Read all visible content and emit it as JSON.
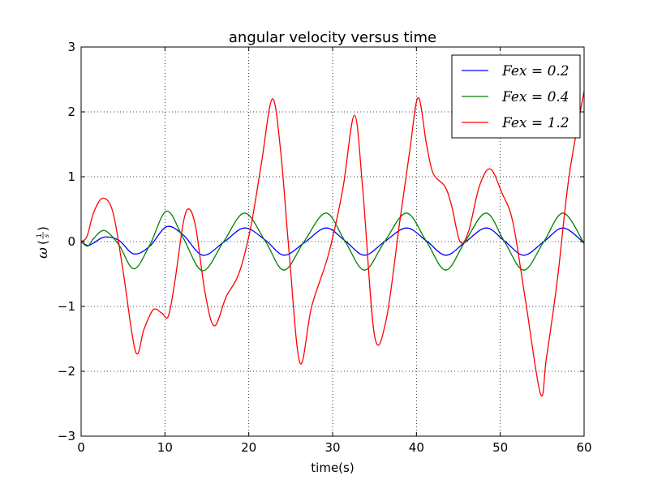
{
  "chart_data": {
    "type": "line",
    "title": "angular velocity versus time",
    "xlabel": "time(s)",
    "ylabel": "ω(1/s)",
    "xlim": [
      0,
      60
    ],
    "ylim": [
      -3,
      3
    ],
    "xticks": [
      0,
      10,
      20,
      30,
      40,
      50,
      60
    ],
    "yticks": [
      -3,
      -2,
      -1,
      0,
      1,
      2,
      3
    ],
    "xtick_labels": [
      "0",
      "10",
      "20",
      "30",
      "40",
      "50",
      "60"
    ],
    "ytick_labels": [
      "−3",
      "−2",
      "−1",
      "0",
      "1",
      "2",
      "3"
    ],
    "grid": true,
    "legend_position": "top-right",
    "series": [
      {
        "name": "F_ex = 0.2",
        "legend_label": "Fex = 0.2",
        "color": "#0000ff",
        "x": [
          0,
          0.8,
          1.5,
          2.8,
          4.5,
          6.3,
          8.2,
          10.2,
          12.2,
          14.5,
          17,
          19.5,
          22,
          24.2,
          26.6,
          29.2,
          31.5,
          33.8,
          36.2,
          38.8,
          41.2,
          43.5,
          45.8,
          48.3,
          50.5,
          52.8,
          55.2,
          57.5,
          60
        ],
        "y": [
          0,
          -0.06,
          -0.02,
          0.07,
          0.02,
          -0.19,
          -0.07,
          0.23,
          0.1,
          -0.21,
          -0.01,
          0.21,
          0.02,
          -0.21,
          -0.02,
          0.21,
          0.01,
          -0.21,
          0.0,
          0.21,
          0.01,
          -0.21,
          -0.01,
          0.21,
          0.01,
          -0.21,
          0.0,
          0.21,
          -0.02
        ]
      },
      {
        "name": "F_ex = 0.4",
        "legend_label": "Fex = 0.4",
        "color": "#008000",
        "x": [
          0,
          0.8,
          1.5,
          2.8,
          4.5,
          6.3,
          8.2,
          10.2,
          12.2,
          14.5,
          17,
          19.5,
          22,
          24.2,
          26.6,
          29.2,
          31.5,
          33.8,
          36.2,
          38.8,
          41.2,
          43.5,
          45.8,
          48.3,
          50.5,
          52.8,
          55.2,
          57.5,
          60
        ],
        "y": [
          0,
          -0.07,
          0.05,
          0.17,
          -0.05,
          -0.42,
          -0.05,
          0.47,
          0.05,
          -0.45,
          0.0,
          0.44,
          0.0,
          -0.44,
          0.0,
          0.44,
          0.0,
          -0.44,
          0.0,
          0.44,
          0.0,
          -0.44,
          0.0,
          0.44,
          0.0,
          -0.44,
          0.0,
          0.44,
          -0.03
        ]
      },
      {
        "name": "F_ex = 1.2",
        "legend_label": "Fex = 1.2",
        "color": "#ff0000",
        "x": [
          0,
          0.7,
          1.5,
          2.6,
          3.8,
          5.0,
          6.5,
          7.5,
          8.6,
          9.6,
          10.4,
          11.2,
          12.2,
          12.9,
          13.7,
          14.8,
          15.9,
          17.3,
          18.8,
          20.2,
          21.5,
          22.8,
          23.8,
          24.8,
          26.1,
          27.5,
          29.5,
          31.2,
          32.6,
          33.6,
          35.0,
          36.4,
          38.0,
          39.2,
          40.2,
          41.2,
          42.0,
          43.4,
          44.2,
          45.2,
          46.2,
          47.5,
          48.8,
          50.2,
          51.5,
          53.0,
          54.8,
          55.5,
          56.8,
          58.2,
          60
        ],
        "y": [
          0,
          0.08,
          0.45,
          0.67,
          0.45,
          -0.45,
          -1.7,
          -1.35,
          -1.05,
          -1.1,
          -1.15,
          -0.6,
          0.3,
          0.5,
          0.2,
          -0.8,
          -1.3,
          -0.85,
          -0.5,
          0.2,
          1.2,
          2.2,
          1.4,
          -0.15,
          -1.87,
          -1.0,
          -0.2,
          0.8,
          1.95,
          0.8,
          -1.45,
          -1.2,
          0.3,
          1.4,
          2.22,
          1.5,
          1.05,
          0.85,
          0.55,
          0.0,
          0.15,
          0.85,
          1.12,
          0.75,
          0.3,
          -0.9,
          -2.35,
          -1.8,
          -0.6,
          1.0,
          2.32
        ]
      }
    ]
  }
}
